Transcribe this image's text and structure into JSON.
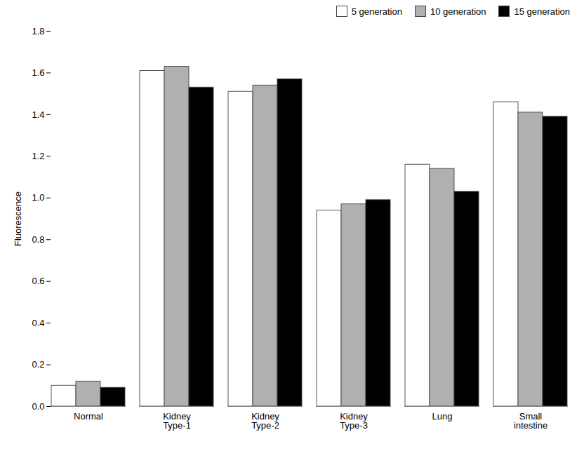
{
  "chart_data": {
    "type": "bar",
    "categories": [
      "Normal",
      "Kidney\nType-1",
      "Kidney\nType-2",
      "Kidney\nType-3",
      "Lung",
      "Small\nintestine"
    ],
    "series": [
      {
        "name": "5 generation",
        "color": "white",
        "values": [
          0.1,
          1.61,
          1.51,
          0.94,
          1.16,
          1.46
        ]
      },
      {
        "name": "10 generation",
        "color": "#b0b0b0",
        "values": [
          0.12,
          1.63,
          1.54,
          0.97,
          1.14,
          1.41
        ]
      },
      {
        "name": "15 generation",
        "color": "#000000",
        "values": [
          0.09,
          1.53,
          1.57,
          0.99,
          1.03,
          1.39
        ]
      }
    ],
    "ylabel": "Fluorescence",
    "ylim": [
      0,
      1.8
    ],
    "yticks": [
      {
        "value": 0,
        "label": "0.0"
      },
      0.2,
      0.4,
      0.6,
      0.8,
      {
        "value": 1.0,
        "label": "1.0"
      },
      1.2,
      1.4,
      1.6,
      1.8
    ],
    "legend": "upper right",
    "grid": false
  }
}
